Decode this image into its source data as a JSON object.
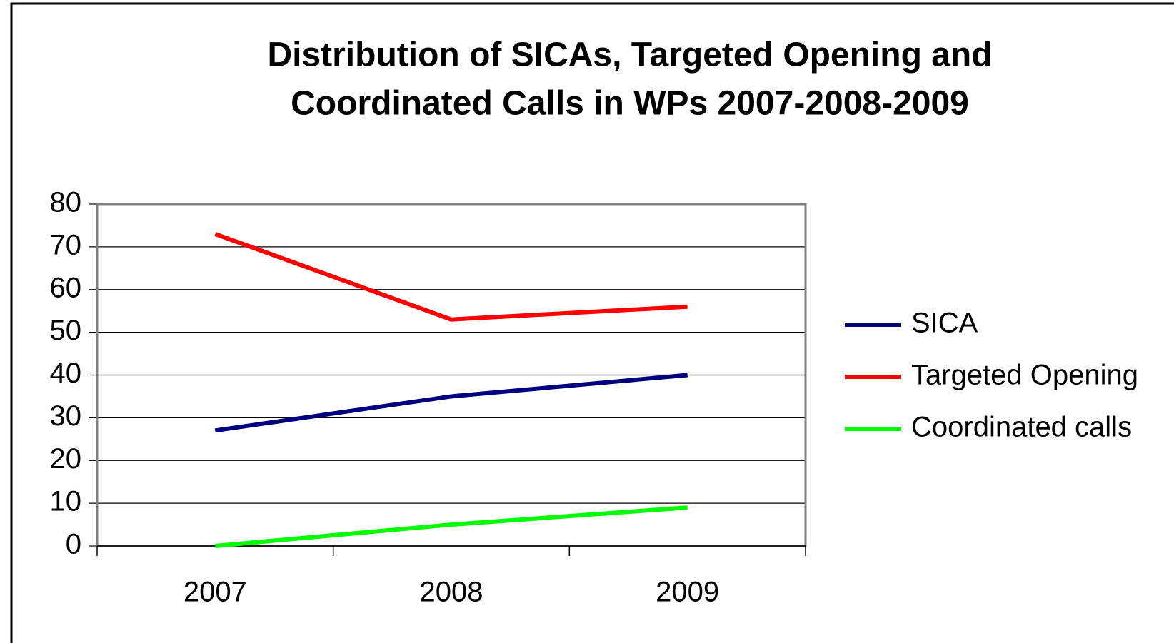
{
  "chart_data": {
    "type": "line",
    "title_lines": [
      "Distribution of SICAs, Targeted Opening and",
      "Coordinated Calls in WPs 2007-2008-2009"
    ],
    "categories": [
      "2007",
      "2008",
      "2009"
    ],
    "series": [
      {
        "name": "SICA",
        "color": "#000080",
        "values": [
          27,
          35,
          40
        ]
      },
      {
        "name": "Targeted Opening",
        "color": "#ff0000",
        "values": [
          73,
          53,
          56
        ]
      },
      {
        "name": "Coordinated calls",
        "color": "#00ff00",
        "values": [
          0,
          5,
          9
        ]
      }
    ],
    "ylim": [
      0,
      80
    ],
    "yticks": [
      0,
      10,
      20,
      30,
      40,
      50,
      60,
      70,
      80
    ],
    "grid": true,
    "legend": "right"
  }
}
